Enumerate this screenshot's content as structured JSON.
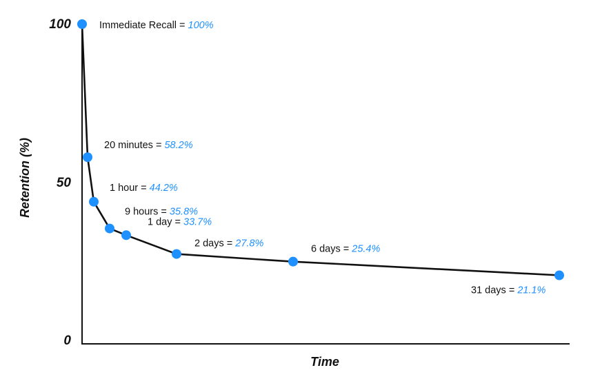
{
  "chart_data": {
    "type": "line",
    "title": "",
    "xlabel": "Time",
    "ylabel": "Retention (%)",
    "ylim": [
      0,
      100
    ],
    "yticks": [
      "0",
      "50",
      "100"
    ],
    "grid": false,
    "colors": {
      "line": "#111111",
      "point": "#1e90ff",
      "value_text": "#1e90ff"
    },
    "points": [
      {
        "label": "Immediate Recall",
        "value_text": "100%",
        "y": 100
      },
      {
        "label": "20 minutes",
        "value_text": "58.2%",
        "y": 58.2
      },
      {
        "label": "1 hour",
        "value_text": "44.2%",
        "y": 44.2
      },
      {
        "label": "9 hours",
        "value_text": "35.8%",
        "y": 35.8
      },
      {
        "label": "1 day",
        "value_text": "33.7%",
        "y": 33.7
      },
      {
        "label": "2 days",
        "value_text": "27.8%",
        "y": 27.8
      },
      {
        "label": "6 days",
        "value_text": "25.4%",
        "y": 25.4
      },
      {
        "label": "31 days",
        "value_text": "21.1%",
        "y": 21.1
      }
    ]
  }
}
